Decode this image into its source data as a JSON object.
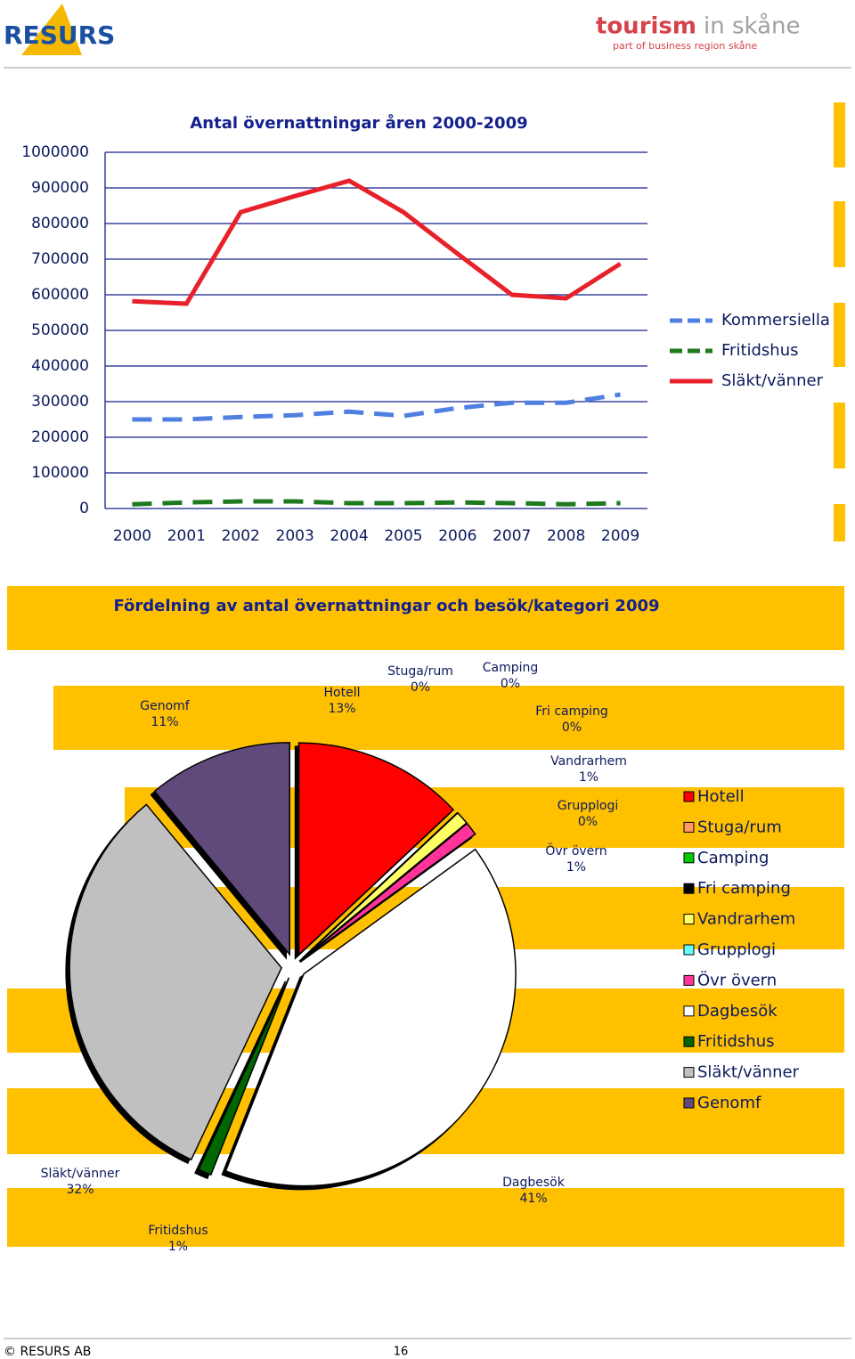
{
  "header": {
    "left_logo": "RESURS",
    "right_logo_bold": "tourism",
    "right_logo_light": "in skåne",
    "right_tagline": "part of business region skåne"
  },
  "chart_data": [
    {
      "type": "line",
      "title": "Antal övernattningar åren 2000-2009",
      "categories": [
        "2000",
        "2001",
        "2002",
        "2003",
        "2004",
        "2005",
        "2006",
        "2007",
        "2008",
        "2009"
      ],
      "series": [
        {
          "name": "Kommersiella",
          "color": "#4f7fe0",
          "line_style": "dashed",
          "values": [
            250000,
            250000,
            257000,
            262000,
            272000,
            260000,
            282000,
            297000,
            297000,
            320000
          ]
        },
        {
          "name": "Fritidshus",
          "color": "#1f7a1f",
          "line_style": "dashed",
          "values": [
            12000,
            17000,
            20000,
            20000,
            15000,
            15000,
            17000,
            15000,
            12000,
            15000
          ]
        },
        {
          "name": "Släkt/vänner",
          "color": "#e8202a",
          "line_style": "solid",
          "values": [
            582000,
            575000,
            832000,
            877000,
            920000,
            832000,
            715000,
            600000,
            590000,
            687000
          ]
        }
      ],
      "ylim": [
        0,
        1000000
      ],
      "yticks": [
        0,
        100000,
        200000,
        300000,
        400000,
        500000,
        600000,
        700000,
        800000,
        900000,
        1000000
      ],
      "grid": true,
      "legend": "right"
    },
    {
      "type": "pie",
      "title": "Fördelning av antal övernattningar och besök/kategori 2009",
      "categories": [
        "Hotell",
        "Stuga/rum",
        "Camping",
        "Fri camping",
        "Vandrarhem",
        "Grupplogi",
        "Övr övern",
        "Dagbesök",
        "Fritidshus",
        "Släkt/vänner",
        "Genomf"
      ],
      "values": [
        13,
        0,
        0,
        0,
        1,
        0,
        1,
        41,
        1,
        32,
        11
      ],
      "value_labels": [
        "13%",
        "0%",
        "0%",
        "0%",
        "1%",
        "0%",
        "1%",
        "41%",
        "1%",
        "32%",
        "11%"
      ],
      "colors": [
        "#ff0000",
        "#ff9966",
        "#00cc00",
        "#000000",
        "#ffff66",
        "#66ffff",
        "#ff3399",
        "#ffffff",
        "#006600",
        "#c0c0c0",
        "#604a7b"
      ],
      "legend": "right"
    }
  ],
  "footer": {
    "copyright": "© RESURS AB",
    "page": "16"
  }
}
